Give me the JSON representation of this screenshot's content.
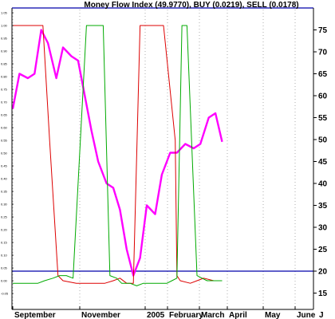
{
  "chart_data": {
    "type": "line",
    "title": "Money Flow Index (49.9770), BUY (0.0219), SELL (0.0178)",
    "xlabel": "",
    "ylabel": "",
    "x_ticks": [
      "September",
      "November",
      "2005",
      "February",
      "March",
      "April",
      "May",
      "June",
      "J"
    ],
    "y_right": {
      "ticks": [
        15,
        20,
        25,
        30,
        35,
        40,
        45,
        50,
        55,
        60,
        65,
        70,
        75
      ],
      "ylim": [
        12,
        80
      ]
    },
    "y_left": {
      "ticks": [
        "1.05",
        "1.00",
        "0.95",
        "0.90",
        "0.85",
        "0.80",
        "0.75",
        "0.70",
        "0.65",
        "0.60",
        "0.55",
        "0.50",
        "0.45",
        "0.40",
        "0.35",
        "0.30",
        "0.25",
        "0.20",
        "0.15",
        "0.10",
        "0.05",
        "0.00",
        "-0.05"
      ],
      "ylim": [
        -0.08,
        1.08
      ]
    },
    "reference_lines": [
      {
        "axis": "right",
        "value": 80,
        "color": "#0000aa"
      },
      {
        "axis": "right",
        "value": 20,
        "color": "#0000aa"
      }
    ],
    "grid": "vertical-dotted",
    "series": [
      {
        "color": "#ff00ff",
        "axis": "right",
        "x": [
          0,
          4,
          9,
          13,
          17,
          21,
          26,
          30,
          35,
          39,
          43,
          47,
          51,
          56,
          60,
          64,
          68,
          72,
          76,
          80,
          85,
          89,
          94,
          98,
          103,
          108,
          112,
          117,
          121,
          125
        ],
        "y": [
          57,
          65,
          64,
          65,
          75,
          72,
          64,
          71,
          69,
          68,
          60,
          52,
          45,
          40,
          39,
          34,
          25,
          19,
          23,
          35,
          33,
          42,
          47,
          47,
          49,
          48,
          49,
          55,
          56,
          49.5
        ]
      },
      {
        "color": "#dd0000",
        "axis": "left",
        "x": [
          0,
          5,
          10,
          15,
          18,
          22,
          27,
          30,
          38,
          46,
          55,
          60,
          64,
          68,
          72,
          76,
          82,
          86,
          90,
          97,
          98,
          100,
          106,
          110,
          114,
          120,
          125
        ],
        "y": [
          1.0,
          1.0,
          1.0,
          1.0,
          1.0,
          0.55,
          0.02,
          0.0,
          -0.01,
          -0.01,
          -0.01,
          0.0,
          0.01,
          -0.01,
          -0.01,
          1.0,
          1.0,
          1.0,
          1.0,
          0.55,
          0.02,
          0.0,
          -0.01,
          0.0,
          0.01,
          0.0,
          0.0
        ]
      },
      {
        "color": "#00aa00",
        "axis": "left",
        "x": [
          0,
          8,
          15,
          19,
          24,
          28,
          32,
          36,
          44,
          54,
          58,
          62,
          65,
          70,
          74,
          78,
          84,
          90,
          92,
          95,
          98,
          101,
          104,
          110,
          116,
          120,
          125
        ],
        "y": [
          -0.01,
          -0.01,
          -0.01,
          0.0,
          0.01,
          0.02,
          0.02,
          0.01,
          1.0,
          1.0,
          0.02,
          0.01,
          -0.01,
          -0.01,
          -0.02,
          -0.01,
          -0.01,
          -0.01,
          -0.01,
          0.0,
          0.01,
          1.0,
          1.0,
          0.02,
          0.0,
          0.0,
          0.0
        ]
      }
    ]
  }
}
